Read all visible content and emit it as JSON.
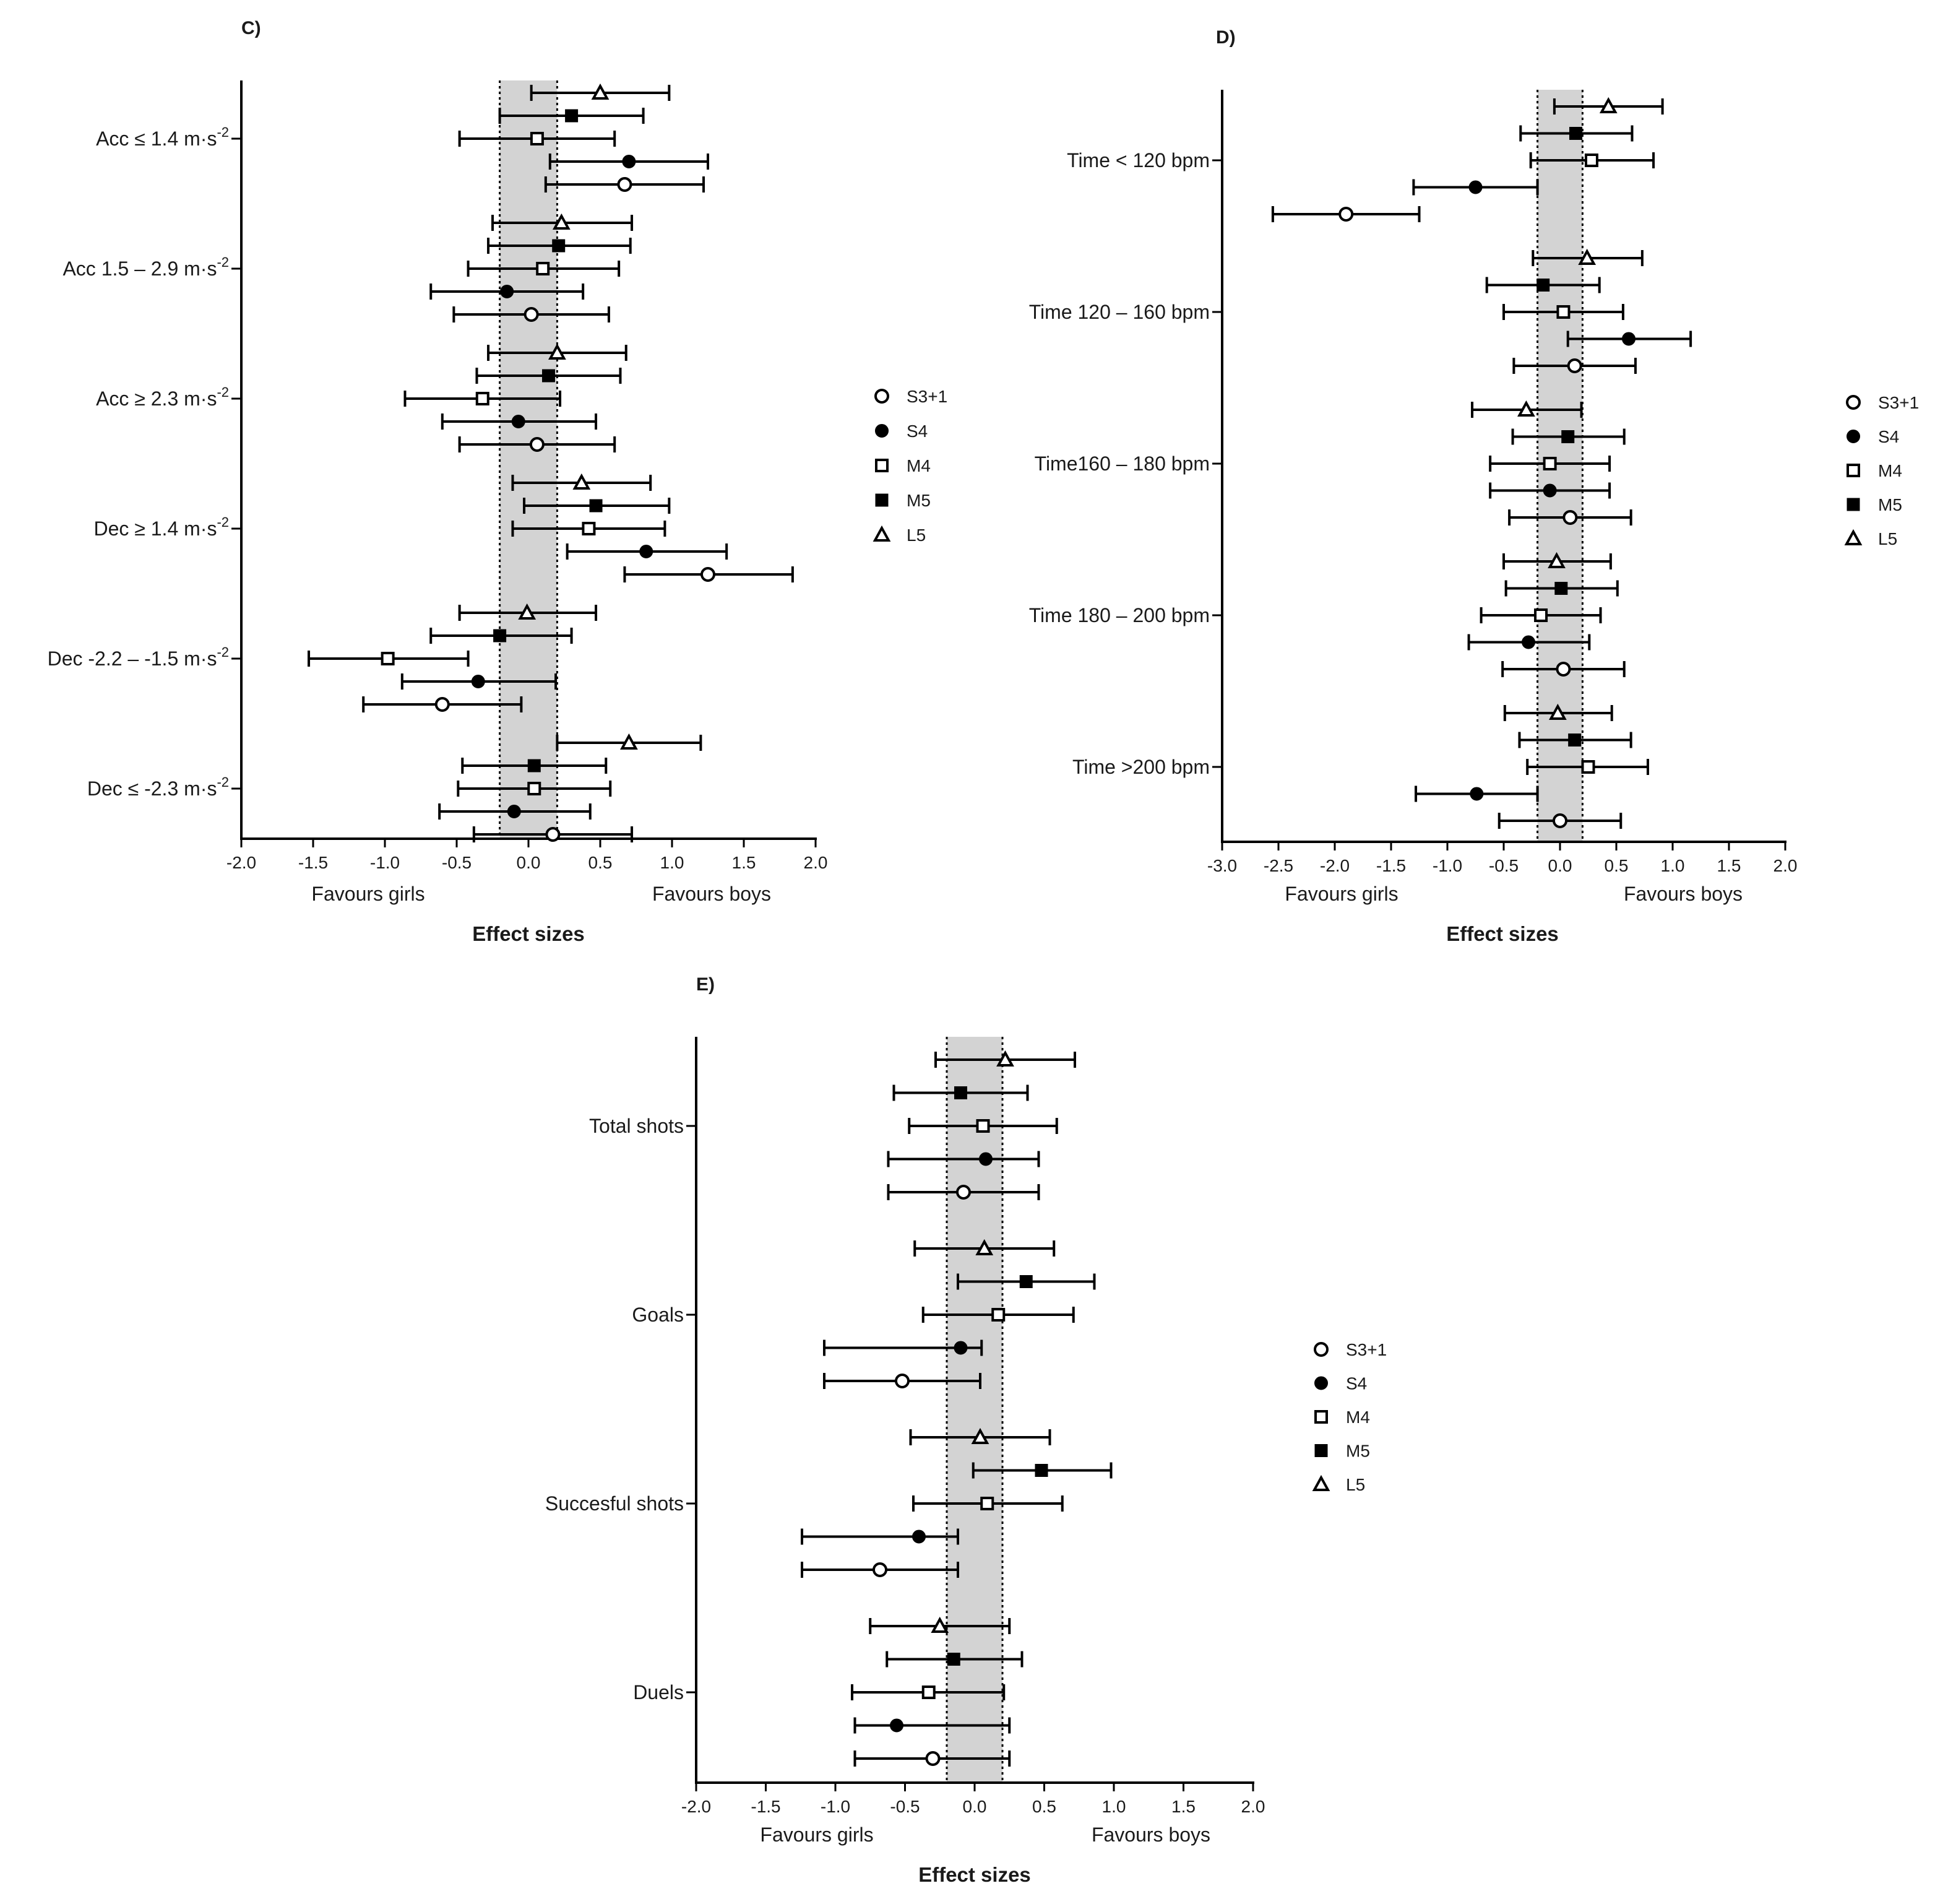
{
  "colors": {
    "band": "#d3d3d3",
    "ink": "#000000",
    "background": "#ffffff"
  },
  "legend_entries": [
    {
      "name": "S3+1",
      "marker": "open-circle"
    },
    {
      "name": "S4",
      "marker": "filled-circle"
    },
    {
      "name": "M4",
      "marker": "open-square"
    },
    {
      "name": "M5",
      "marker": "filled-square"
    },
    {
      "name": "L5",
      "marker": "open-triangle"
    }
  ],
  "chart_data": [
    {
      "panel": "C)",
      "type": "forest",
      "xlabel": "Effect sizes",
      "favours_left": "Favours girls",
      "favours_right": "Favours boys",
      "xlim": [
        -2.0,
        2.0
      ],
      "xticks": [
        "-2.0",
        "-1.5",
        "-1.0",
        "-0.5",
        "0.0",
        "0.5",
        "1.0",
        "1.5",
        "2.0"
      ],
      "band": [
        -0.2,
        0.2
      ],
      "legend_placement": "right",
      "categories": [
        {
          "label": "Acc ≤ 1.4 m·s",
          "sup": "-2",
          "points": [
            {
              "series": "L5",
              "value": 0.5,
              "lo": 0.02,
              "hi": 0.98
            },
            {
              "series": "M5",
              "value": 0.3,
              "lo": -0.2,
              "hi": 0.8
            },
            {
              "series": "M4",
              "value": 0.06,
              "lo": -0.48,
              "hi": 0.6
            },
            {
              "series": "S4",
              "value": 0.7,
              "lo": 0.15,
              "hi": 1.25
            },
            {
              "series": "S3+1",
              "value": 0.67,
              "lo": 0.12,
              "hi": 1.22
            }
          ]
        },
        {
          "label": "Acc 1.5 – 2.9 m·s",
          "sup": "-2",
          "points": [
            {
              "series": "L5",
              "value": 0.23,
              "lo": -0.25,
              "hi": 0.72
            },
            {
              "series": "M5",
              "value": 0.21,
              "lo": -0.28,
              "hi": 0.71
            },
            {
              "series": "M4",
              "value": 0.1,
              "lo": -0.42,
              "hi": 0.63
            },
            {
              "series": "S4",
              "value": -0.15,
              "lo": -0.68,
              "hi": 0.38
            },
            {
              "series": "S3+1",
              "value": 0.02,
              "lo": -0.52,
              "hi": 0.56
            }
          ]
        },
        {
          "label": "Acc ≥ 2.3 m·s",
          "sup": "-2",
          "points": [
            {
              "series": "L5",
              "value": 0.2,
              "lo": -0.28,
              "hi": 0.68
            },
            {
              "series": "M5",
              "value": 0.14,
              "lo": -0.36,
              "hi": 0.64
            },
            {
              "series": "M4",
              "value": -0.32,
              "lo": -0.86,
              "hi": 0.22
            },
            {
              "series": "S4",
              "value": -0.07,
              "lo": -0.6,
              "hi": 0.47
            },
            {
              "series": "S3+1",
              "value": 0.06,
              "lo": -0.48,
              "hi": 0.6
            }
          ]
        },
        {
          "label": "Dec ≥ 1.4 m·s",
          "sup": "-2",
          "points": [
            {
              "series": "L5",
              "value": 0.37,
              "lo": -0.11,
              "hi": 0.85
            },
            {
              "series": "M5",
              "value": 0.47,
              "lo": -0.03,
              "hi": 0.98
            },
            {
              "series": "M4",
              "value": 0.42,
              "lo": -0.11,
              "hi": 0.95
            },
            {
              "series": "S4",
              "value": 0.82,
              "lo": 0.27,
              "hi": 1.38
            },
            {
              "series": "S3+1",
              "value": 1.25,
              "lo": 0.67,
              "hi": 1.84
            }
          ]
        },
        {
          "label": "Dec -2.2 – -1.5 m·s",
          "sup": "-2",
          "points": [
            {
              "series": "L5",
              "value": -0.01,
              "lo": -0.48,
              "hi": 0.47
            },
            {
              "series": "M5",
              "value": -0.2,
              "lo": -0.68,
              "hi": 0.3
            },
            {
              "series": "M4",
              "value": -0.98,
              "lo": -1.53,
              "hi": -0.42
            },
            {
              "series": "S4",
              "value": -0.35,
              "lo": -0.88,
              "hi": 0.19
            },
            {
              "series": "S3+1",
              "value": -0.6,
              "lo": -1.15,
              "hi": -0.05
            }
          ]
        },
        {
          "label": "Dec ≤ -2.3 m·s",
          "sup": "-2",
          "points": [
            {
              "series": "L5",
              "value": 0.7,
              "lo": 0.2,
              "hi": 1.2
            },
            {
              "series": "M5",
              "value": 0.04,
              "lo": -0.46,
              "hi": 0.54
            },
            {
              "series": "M4",
              "value": 0.04,
              "lo": -0.49,
              "hi": 0.57
            },
            {
              "series": "S4",
              "value": -0.1,
              "lo": -0.62,
              "hi": 0.43
            },
            {
              "series": "S3+1",
              "value": 0.17,
              "lo": -0.38,
              "hi": 0.72
            }
          ]
        }
      ]
    },
    {
      "panel": "D)",
      "type": "forest",
      "xlabel": "Effect sizes",
      "favours_left": "Favours girls",
      "favours_right": "Favours boys",
      "xlim": [
        -3.0,
        2.0
      ],
      "xticks": [
        "-3.0",
        "-2.5",
        "-2.0",
        "-1.5",
        "-1.0",
        "-0.5",
        "0.0",
        "0.5",
        "1.0",
        "1.5",
        "2.0"
      ],
      "band": [
        -0.2,
        0.2
      ],
      "legend_placement": "right",
      "categories": [
        {
          "label": "Time < 120 bpm",
          "sup": "",
          "points": [
            {
              "series": "L5",
              "value": 0.43,
              "lo": -0.05,
              "hi": 0.91
            },
            {
              "series": "M5",
              "value": 0.14,
              "lo": -0.35,
              "hi": 0.64
            },
            {
              "series": "M4",
              "value": 0.28,
              "lo": -0.26,
              "hi": 0.83
            },
            {
              "series": "S4",
              "value": -0.75,
              "lo": -1.3,
              "hi": -0.2
            },
            {
              "series": "S3+1",
              "value": -1.9,
              "lo": -2.55,
              "hi": -1.25
            }
          ]
        },
        {
          "label": "Time 120 – 160 bpm",
          "sup": "",
          "points": [
            {
              "series": "L5",
              "value": 0.24,
              "lo": -0.24,
              "hi": 0.73
            },
            {
              "series": "M5",
              "value": -0.15,
              "lo": -0.65,
              "hi": 0.35
            },
            {
              "series": "M4",
              "value": 0.03,
              "lo": -0.5,
              "hi": 0.56
            },
            {
              "series": "S4",
              "value": 0.61,
              "lo": 0.07,
              "hi": 1.16
            },
            {
              "series": "S3+1",
              "value": 0.13,
              "lo": -0.41,
              "hi": 0.67
            }
          ]
        },
        {
          "label": "Time160 – 180 bpm",
          "sup": "",
          "points": [
            {
              "series": "L5",
              "value": -0.3,
              "lo": -0.78,
              "hi": 0.19
            },
            {
              "series": "M5",
              "value": 0.07,
              "lo": -0.42,
              "hi": 0.57
            },
            {
              "series": "M4",
              "value": -0.09,
              "lo": -0.62,
              "hi": 0.44
            },
            {
              "series": "S4",
              "value": -0.09,
              "lo": -0.62,
              "hi": 0.44
            },
            {
              "series": "S3+1",
              "value": 0.09,
              "lo": -0.45,
              "hi": 0.63
            }
          ]
        },
        {
          "label": "Time 180 – 200 bpm",
          "sup": "",
          "points": [
            {
              "series": "L5",
              "value": -0.03,
              "lo": -0.5,
              "hi": 0.45
            },
            {
              "series": "M5",
              "value": 0.01,
              "lo": -0.48,
              "hi": 0.51
            },
            {
              "series": "M4",
              "value": -0.17,
              "lo": -0.7,
              "hi": 0.36
            },
            {
              "series": "S4",
              "value": -0.28,
              "lo": -0.81,
              "hi": 0.26
            },
            {
              "series": "S3+1",
              "value": 0.03,
              "lo": -0.51,
              "hi": 0.57
            }
          ]
        },
        {
          "label": "Time >200 bpm",
          "sup": "",
          "points": [
            {
              "series": "L5",
              "value": -0.02,
              "lo": -0.49,
              "hi": 0.46
            },
            {
              "series": "M5",
              "value": 0.13,
              "lo": -0.36,
              "hi": 0.63
            },
            {
              "series": "M4",
              "value": 0.25,
              "lo": -0.29,
              "hi": 0.78
            },
            {
              "series": "S4",
              "value": -0.74,
              "lo": -1.28,
              "hi": -0.2
            },
            {
              "series": "S3+1",
              "value": 0.0,
              "lo": -0.54,
              "hi": 0.54
            }
          ]
        }
      ]
    },
    {
      "panel": "E)",
      "type": "forest",
      "xlabel": "Effect sizes",
      "favours_left": "Favours girls",
      "favours_right": "Favours boys",
      "xlim": [
        -2.0,
        2.0
      ],
      "xticks": [
        "-2.0",
        "-1.5",
        "-1.0",
        "-0.5",
        "0.0",
        "0.5",
        "1.0",
        "1.5",
        "2.0"
      ],
      "band": [
        -0.2,
        0.2
      ],
      "legend_placement": "right",
      "categories": [
        {
          "label": "Total shots",
          "sup": "",
          "points": [
            {
              "series": "L5",
              "value": 0.22,
              "lo": -0.28,
              "hi": 0.72
            },
            {
              "series": "M5",
              "value": -0.1,
              "lo": -0.58,
              "hi": 0.38
            },
            {
              "series": "M4",
              "value": 0.06,
              "lo": -0.47,
              "hi": 0.59
            },
            {
              "series": "S4",
              "value": 0.08,
              "lo": -0.62,
              "hi": 0.46
            },
            {
              "series": "S3+1",
              "value": -0.08,
              "lo": -0.62,
              "hi": 0.46
            }
          ]
        },
        {
          "label": "Goals",
          "sup": "",
          "points": [
            {
              "series": "L5",
              "value": 0.07,
              "lo": -0.43,
              "hi": 0.57
            },
            {
              "series": "M5",
              "value": 0.37,
              "lo": -0.12,
              "hi": 0.86
            },
            {
              "series": "M4",
              "value": 0.17,
              "lo": -0.37,
              "hi": 0.71
            },
            {
              "series": "S4",
              "value": -0.1,
              "lo": -1.08,
              "hi": 0.05
            },
            {
              "series": "S3+1",
              "value": -0.52,
              "lo": -1.08,
              "hi": 0.04
            }
          ]
        },
        {
          "label": "Succesful shots",
          "sup": "",
          "points": [
            {
              "series": "L5",
              "value": 0.04,
              "lo": -0.46,
              "hi": 0.54
            },
            {
              "series": "M5",
              "value": 0.48,
              "lo": -0.01,
              "hi": 0.98
            },
            {
              "series": "M4",
              "value": 0.09,
              "lo": -0.44,
              "hi": 0.63
            },
            {
              "series": "S4",
              "value": -0.4,
              "lo": -1.24,
              "hi": -0.12
            },
            {
              "series": "S3+1",
              "value": -0.68,
              "lo": -1.24,
              "hi": -0.12
            }
          ]
        },
        {
          "label": "Duels",
          "sup": "",
          "points": [
            {
              "series": "L5",
              "value": -0.25,
              "lo": -0.75,
              "hi": 0.25
            },
            {
              "series": "M5",
              "value": -0.15,
              "lo": -0.63,
              "hi": 0.34
            },
            {
              "series": "M4",
              "value": -0.33,
              "lo": -0.88,
              "hi": 0.21
            },
            {
              "series": "S4",
              "value": -0.56,
              "lo": -0.86,
              "hi": 0.25
            },
            {
              "series": "S3+1",
              "value": -0.3,
              "lo": -0.86,
              "hi": 0.25
            }
          ]
        }
      ]
    }
  ]
}
